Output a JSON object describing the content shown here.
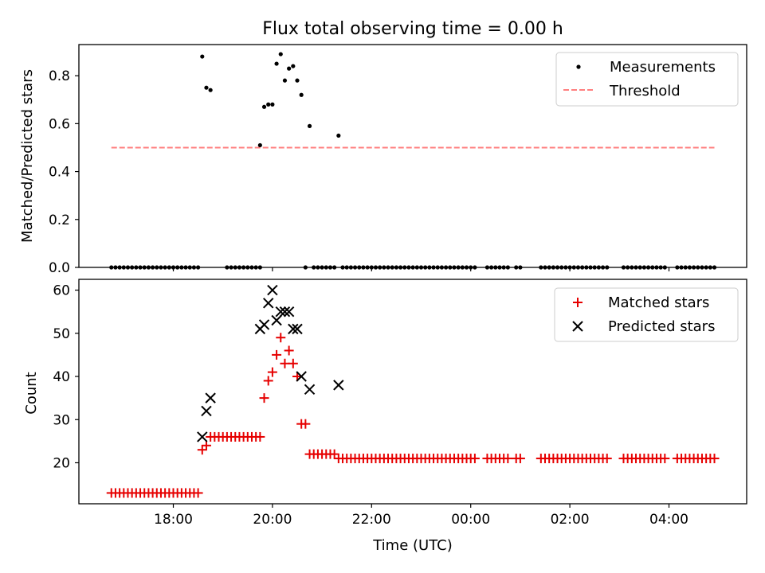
{
  "title": "Flux total observing time = 0.00 h",
  "colors": {
    "measurements": "#000000",
    "threshold": "#ff7f7f",
    "matched": "#e60000",
    "predicted": "#000000"
  },
  "chart_data": [
    {
      "type": "scatter",
      "title": "Flux total observing time = 0.00 h",
      "xlabel": "",
      "ylabel": "Matched/Predicted stars",
      "ylim": [
        0.0,
        0.93
      ],
      "yticks": [
        "0.0",
        "0.2",
        "0.4",
        "0.6",
        "0.8"
      ],
      "ytick_values": [
        0.0,
        0.2,
        0.4,
        0.6,
        0.8
      ],
      "xticks": [
        "18:00",
        "20:00",
        "22:00",
        "00:00",
        "02:00",
        "04:00"
      ],
      "xtick_values": [
        "18:00",
        "20:00",
        "22:00",
        "00:00",
        "02:00",
        "04:00"
      ],
      "legend_position": "top-right",
      "grid": false,
      "series": [
        {
          "name": "Measurements",
          "marker": "dot",
          "x": [
            "18:35",
            "18:40",
            "18:45",
            "19:45",
            "19:50",
            "19:55",
            "20:00",
            "20:05",
            "20:10",
            "20:15",
            "20:20",
            "20:25",
            "20:30",
            "20:35",
            "20:45",
            "21:20"
          ],
          "y": [
            0.88,
            0.75,
            0.74,
            0.51,
            0.67,
            0.68,
            0.68,
            0.85,
            0.89,
            0.78,
            0.83,
            0.84,
            0.78,
            0.72,
            0.59,
            0.55
          ],
          "zero_x_ranges": [
            [
              "16:45",
              "18:30"
            ],
            [
              "19:05",
              "19:45"
            ],
            [
              "20:40",
              "20:40"
            ],
            [
              "20:50",
              "21:15"
            ],
            [
              "21:25",
              "00:05"
            ],
            [
              "00:20",
              "00:45"
            ],
            [
              "00:55",
              "01:00"
            ],
            [
              "01:25",
              "02:45"
            ],
            [
              "03:05",
              "03:55"
            ],
            [
              "04:10",
              "04:55"
            ]
          ],
          "zero_interval_minutes": 5
        },
        {
          "name": "Threshold",
          "style": "dashed",
          "y": 0.5,
          "x_range": [
            "16:45",
            "04:55"
          ]
        }
      ]
    },
    {
      "type": "scatter",
      "xlabel": "Time (UTC)",
      "ylabel": "Count",
      "ylim": [
        10.5,
        62.5
      ],
      "yticks": [
        "20",
        "30",
        "40",
        "50",
        "60"
      ],
      "ytick_values": [
        20,
        30,
        40,
        50,
        60
      ],
      "xticks": [
        "18:00",
        "20:00",
        "22:00",
        "00:00",
        "02:00",
        "04:00"
      ],
      "xtick_values": [
        "18:00",
        "20:00",
        "22:00",
        "00:00",
        "02:00",
        "04:00"
      ],
      "legend_position": "top-right",
      "grid": false,
      "series": [
        {
          "name": "Matched stars",
          "marker": "plus",
          "segments": [
            {
              "from": "16:45",
              "to": "18:30",
              "value": 13
            },
            {
              "from": "18:35",
              "to": "18:35",
              "value": 23
            },
            {
              "from": "18:40",
              "to": "18:40",
              "value": 24
            },
            {
              "from": "18:45",
              "to": "19:40",
              "value": 26
            },
            {
              "from": "20:50",
              "to": "21:15",
              "value": 22
            },
            {
              "from": "21:20",
              "to": "00:05",
              "value": 21
            },
            {
              "from": "00:20",
              "to": "00:45",
              "value": 21
            },
            {
              "from": "00:55",
              "to": "01:00",
              "value": 21
            },
            {
              "from": "01:25",
              "to": "02:45",
              "value": 21
            },
            {
              "from": "03:05",
              "to": "03:55",
              "value": 21
            },
            {
              "from": "04:10",
              "to": "04:55",
              "value": 21
            }
          ],
          "interval_minutes": 5,
          "x": [
            "19:45",
            "19:50",
            "19:55",
            "20:00",
            "20:05",
            "20:10",
            "20:15",
            "20:20",
            "20:25",
            "20:30",
            "20:35",
            "20:40",
            "20:45"
          ],
          "y": [
            26,
            35,
            39,
            41,
            45,
            49,
            43,
            46,
            43,
            40,
            29,
            29,
            22
          ]
        },
        {
          "name": "Predicted stars",
          "marker": "x",
          "x": [
            "18:35",
            "18:40",
            "18:45",
            "19:45",
            "19:50",
            "19:55",
            "20:00",
            "20:05",
            "20:10",
            "20:15",
            "20:20",
            "20:25",
            "20:30",
            "20:35",
            "20:45",
            "21:20"
          ],
          "y": [
            26,
            32,
            35,
            51,
            52,
            57,
            60,
            53,
            55,
            55,
            55,
            51,
            51,
            40,
            37,
            38
          ]
        }
      ]
    }
  ]
}
